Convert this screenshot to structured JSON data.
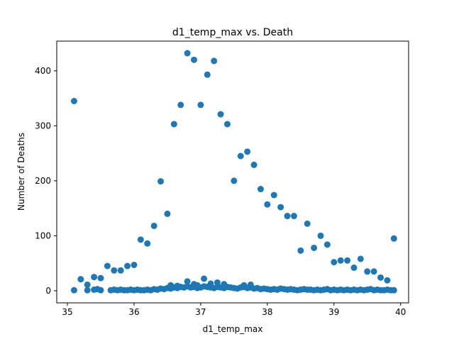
{
  "chart_data": {
    "type": "scatter",
    "title": "d1_temp_max vs. Death",
    "xlabel": "d1_temp_max",
    "ylabel": "Number of Deaths",
    "xlim": [
      34.84,
      40.12
    ],
    "ylim": [
      -22,
      454
    ],
    "xticks": [
      35,
      36,
      37,
      38,
      39,
      40
    ],
    "xtick_labels": [
      "35",
      "36",
      "37",
      "38",
      "39",
      "40"
    ],
    "yticks": [
      0,
      100,
      200,
      300,
      400
    ],
    "ytick_labels": [
      "0",
      "100",
      "200",
      "300",
      "400"
    ],
    "grid": false,
    "legend": "none",
    "marker_color": "#1f77b4",
    "series": [
      {
        "x": [
          35.1,
          35.2,
          35.3,
          35.4,
          35.5,
          35.6,
          35.7,
          35.8,
          35.9,
          36.0,
          36.1,
          36.2,
          36.3,
          36.4,
          36.5,
          36.6,
          36.7,
          36.8,
          36.9,
          37.0,
          37.1,
          37.2,
          37.3,
          37.4,
          37.5,
          37.6,
          37.7,
          37.8,
          37.9,
          38.0,
          38.1,
          38.2,
          38.3,
          38.4,
          38.5,
          38.6,
          38.7,
          38.8,
          38.9,
          39.0,
          39.1,
          39.2,
          39.3,
          39.4,
          39.5,
          39.6,
          39.7,
          39.8,
          39.9,
          35.1,
          35.3,
          35.4,
          35.45,
          35.5,
          35.65,
          35.7,
          35.75,
          35.8,
          35.85,
          35.9,
          35.95,
          36.0,
          36.05,
          36.1,
          36.15,
          36.2,
          36.25,
          36.3,
          36.35,
          36.4,
          36.45,
          36.5,
          36.55,
          36.6,
          36.65,
          36.7,
          36.75,
          36.8,
          36.85,
          36.9,
          36.95,
          37.0,
          37.05,
          37.1,
          37.15,
          37.2,
          37.25,
          37.3,
          37.35,
          37.4,
          37.45,
          37.5,
          37.55,
          37.6,
          37.65,
          37.7,
          37.75,
          37.8,
          37.85,
          37.9,
          37.95,
          38.0,
          38.05,
          38.1,
          38.15,
          38.2,
          38.25,
          38.3,
          38.35,
          38.4,
          38.45,
          38.5,
          38.55,
          38.6,
          38.65,
          38.7,
          38.75,
          38.8,
          38.85,
          38.9,
          38.95,
          39.0,
          39.05,
          39.1,
          39.15,
          39.2,
          39.25,
          39.3,
          39.35,
          39.4,
          39.45,
          39.5,
          39.55,
          39.6,
          39.65,
          39.7,
          39.75,
          39.8,
          39.85,
          39.9,
          36.8,
          36.9,
          36.95,
          37.05,
          37.15,
          37.25,
          37.35,
          37.65,
          37.75,
          36.55,
          36.65
        ],
        "y": [
          345,
          21,
          11,
          25,
          23,
          45,
          37,
          37,
          45,
          47,
          93,
          86,
          118,
          199,
          140,
          303,
          338,
          432,
          420,
          338,
          393,
          418,
          321,
          303,
          200,
          245,
          253,
          229,
          185,
          157,
          174,
          152,
          136,
          136,
          73,
          122,
          78,
          100,
          84,
          52,
          55,
          55,
          42,
          58,
          35,
          35,
          24,
          19,
          95,
          1,
          1,
          2,
          3,
          1,
          1,
          2,
          1,
          2,
          1,
          1,
          2,
          1,
          2,
          1,
          1,
          2,
          1,
          3,
          2,
          4,
          3,
          5,
          4,
          6,
          5,
          7,
          6,
          8,
          6,
          7,
          5,
          6,
          8,
          7,
          6,
          5,
          7,
          6,
          5,
          7,
          6,
          5,
          4,
          6,
          7,
          5,
          6,
          4,
          5,
          3,
          4,
          3,
          2,
          3,
          2,
          4,
          3,
          2,
          3,
          2,
          1,
          2,
          3,
          2,
          2,
          1,
          2,
          1,
          2,
          3,
          1,
          2,
          1,
          2,
          1,
          2,
          1,
          2,
          1,
          2,
          1,
          2,
          3,
          1,
          2,
          1,
          1,
          2,
          1,
          1,
          17,
          12,
          10,
          22,
          13,
          15,
          12,
          10,
          11,
          10,
          9
        ]
      }
    ]
  }
}
